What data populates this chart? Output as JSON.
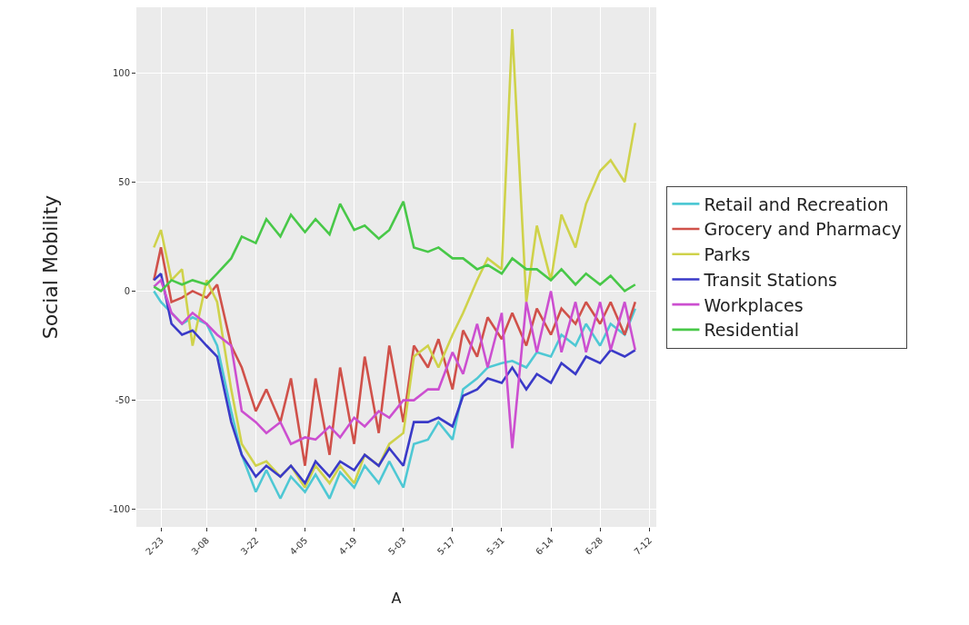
{
  "chart_data": {
    "type": "line",
    "xlabel": "A",
    "ylabel": "Social Mobility",
    "x": [
      "--02-21",
      "--02-23",
      "--02-26",
      "--03-01",
      "--03-04",
      "--03-08",
      "--03-11",
      "--03-15",
      "--03-18",
      "--03-22",
      "--03-25",
      "--03-29",
      "--04-01",
      "--04-05",
      "--04-08",
      "--04-12",
      "--04-15",
      "--04-19",
      "--04-22",
      "--04-26",
      "--04-29",
      "--05-03",
      "--05-06",
      "--05-10",
      "--05-13",
      "--05-17",
      "--05-20",
      "--05-24",
      "--05-27",
      "--05-31",
      "--06-03",
      "--06-07",
      "--06-10",
      "--06-14",
      "--06-17",
      "--06-21",
      "--06-24",
      "--06-28",
      "--07-01",
      "--07-05",
      "--07-08"
    ],
    "series": [
      {
        "name": "Retail and Recreation",
        "color": "#4ec8d4",
        "values": [
          0,
          -5,
          -10,
          -15,
          -12,
          -15,
          -25,
          -55,
          -75,
          -92,
          -82,
          -95,
          -85,
          -92,
          -84,
          -95,
          -83,
          -90,
          -80,
          -88,
          -78,
          -90,
          -70,
          -68,
          -60,
          -68,
          -45,
          -40,
          -35,
          -33,
          -32,
          -35,
          -28,
          -30,
          -20,
          -25,
          -15,
          -25,
          -15,
          -20,
          -8
        ]
      },
      {
        "name": "Grocery and Pharmacy",
        "color": "#d0514a",
        "values": [
          5,
          20,
          -5,
          -3,
          0,
          -3,
          3,
          -25,
          -35,
          -55,
          -45,
          -60,
          -40,
          -80,
          -40,
          -75,
          -35,
          -70,
          -30,
          -65,
          -25,
          -60,
          -25,
          -35,
          -22,
          -45,
          -18,
          -30,
          -12,
          -22,
          -10,
          -25,
          -8,
          -20,
          -8,
          -15,
          -5,
          -15,
          -5,
          -20,
          -5
        ]
      },
      {
        "name": "Parks",
        "color": "#cfd24a",
        "values": [
          20,
          28,
          5,
          10,
          -25,
          5,
          -5,
          -45,
          -70,
          -80,
          -78,
          -85,
          -80,
          -90,
          -80,
          -88,
          -80,
          -88,
          -75,
          -80,
          -70,
          -65,
          -30,
          -25,
          -35,
          -20,
          -10,
          5,
          15,
          10,
          120,
          -5,
          30,
          5,
          35,
          20,
          40,
          55,
          60,
          50,
          77
        ]
      },
      {
        "name": "Transit Stations",
        "color": "#3a3ac8",
        "values": [
          5,
          8,
          -15,
          -20,
          -18,
          -25,
          -30,
          -60,
          -75,
          -85,
          -80,
          -85,
          -80,
          -88,
          -78,
          -85,
          -78,
          -82,
          -75,
          -80,
          -72,
          -80,
          -60,
          -60,
          -58,
          -62,
          -48,
          -45,
          -40,
          -42,
          -35,
          -45,
          -38,
          -42,
          -33,
          -38,
          -30,
          -33,
          -27,
          -30,
          -27
        ]
      },
      {
        "name": "Workplaces",
        "color": "#cc4fd0",
        "values": [
          2,
          5,
          -10,
          -15,
          -10,
          -15,
          -20,
          -25,
          -55,
          -60,
          -65,
          -60,
          -70,
          -67,
          -68,
          -62,
          -67,
          -58,
          -62,
          -55,
          -58,
          -50,
          -50,
          -45,
          -45,
          -28,
          -38,
          -15,
          -35,
          -10,
          -72,
          -5,
          -28,
          0,
          -28,
          -5,
          -28,
          -5,
          -27,
          -5,
          -27
        ]
      },
      {
        "name": "Residential",
        "color": "#48c848",
        "values": [
          2,
          0,
          5,
          3,
          5,
          3,
          8,
          15,
          25,
          22,
          33,
          25,
          35,
          27,
          33,
          26,
          40,
          28,
          30,
          24,
          28,
          41,
          20,
          18,
          20,
          15,
          15,
          10,
          12,
          8,
          15,
          10,
          10,
          5,
          10,
          3,
          8,
          3,
          7,
          0,
          3
        ]
      }
    ],
    "xlim": [
      "--02-16",
      "--07-14"
    ],
    "xticks": [
      {
        "value": "--02-23",
        "label": "2-23"
      },
      {
        "value": "--03-08",
        "label": "3-08"
      },
      {
        "value": "--03-22",
        "label": "3-22"
      },
      {
        "value": "--04-05",
        "label": "4-05"
      },
      {
        "value": "--04-19",
        "label": "4-19"
      },
      {
        "value": "--05-03",
        "label": "5-03"
      },
      {
        "value": "--05-17",
        "label": "5-17"
      },
      {
        "value": "--05-31",
        "label": "5-31"
      },
      {
        "value": "--06-14",
        "label": "6-14"
      },
      {
        "value": "--06-28",
        "label": "6-28"
      },
      {
        "value": "--07-12",
        "label": "7-12"
      }
    ],
    "ylim": [
      -108,
      130
    ],
    "yticks": [
      -100,
      -50,
      0,
      50,
      100
    ],
    "grid": true,
    "legend": "right",
    "marker": "none",
    "line_style": "solid"
  }
}
